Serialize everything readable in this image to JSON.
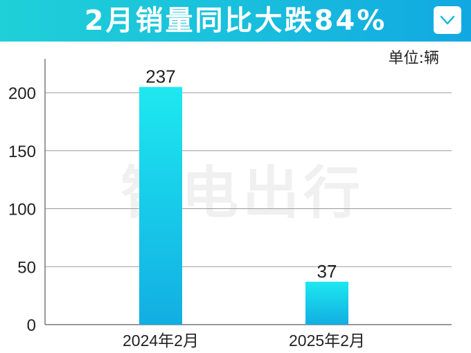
{
  "header": {
    "title": "2月销量同比大跌84%",
    "bg_color": "#19c0dc",
    "menu_icon": "chevron-down-icon"
  },
  "unit_label": "单位:辆",
  "watermark": "智电出行",
  "chart_data": {
    "type": "bar",
    "categories": [
      "2024年2月",
      "2025年2月"
    ],
    "values": [
      237,
      37
    ],
    "data_labels": [
      "237",
      "37"
    ],
    "title": "2月销量同比大跌84%",
    "xlabel": "",
    "ylabel": "",
    "ylim": [
      0,
      220
    ],
    "yticks": [
      0,
      50,
      100,
      150,
      200
    ],
    "grid": true,
    "legend": "none",
    "bar_color_top": "#1ee8f0",
    "bar_color_bottom": "#12aee2"
  }
}
